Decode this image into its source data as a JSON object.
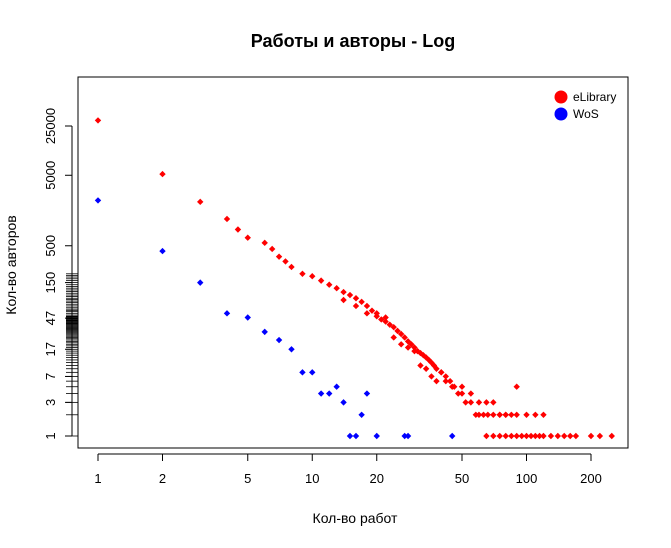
{
  "chart_data": {
    "type": "scatter",
    "title": "Работы и авторы - Log",
    "xlabel": "Кол-во работ",
    "ylabel": "Кол-во авторов",
    "x_scale": "log",
    "y_scale": "log",
    "xlim": [
      0.8,
      300
    ],
    "ylim": [
      0.7,
      110000
    ],
    "x_ticks": [
      1,
      2,
      5,
      10,
      20,
      50,
      100,
      200
    ],
    "x_tick_labels": [
      "1",
      "2",
      "5",
      "10",
      "20",
      "50",
      "100",
      "200"
    ],
    "y_ticks": [
      1,
      3,
      7,
      17,
      47,
      150,
      500,
      5000,
      25000
    ],
    "y_tick_labels": [
      "1",
      "3",
      "7",
      "17",
      "47",
      "150",
      "500",
      "5000",
      "25000"
    ],
    "y_rug_ticks": [
      1,
      2,
      3,
      4,
      5,
      6,
      7,
      8,
      9,
      10,
      11,
      12,
      13,
      14,
      15,
      16,
      17,
      18,
      19,
      20,
      21,
      22,
      23,
      24,
      25,
      26,
      27,
      28,
      29,
      30,
      31,
      32,
      33,
      34,
      35,
      36,
      37,
      38,
      39,
      40,
      41,
      42,
      43,
      44,
      45,
      46,
      47,
      48,
      49,
      50,
      52,
      55,
      58,
      60,
      63,
      66,
      70,
      74,
      78,
      82,
      86,
      90,
      95,
      100,
      106,
      112,
      118,
      125,
      132,
      140,
      150,
      160,
      170,
      180,
      190,
      200
    ],
    "grid": false,
    "legend_position": "top-right",
    "series": [
      {
        "name": "eLibrary",
        "color": "#ff0000",
        "points": [
          [
            1,
            30000
          ],
          [
            2,
            5200
          ],
          [
            3,
            2100
          ],
          [
            4,
            1200
          ],
          [
            4.5,
            850
          ],
          [
            5,
            650
          ],
          [
            6,
            550
          ],
          [
            6.5,
            450
          ],
          [
            7,
            350
          ],
          [
            7.5,
            300
          ],
          [
            8,
            250
          ],
          [
            9,
            200
          ],
          [
            10,
            185
          ],
          [
            11,
            160
          ],
          [
            12,
            140
          ],
          [
            13,
            125
          ],
          [
            14,
            110
          ],
          [
            15,
            100
          ],
          [
            16,
            90
          ],
          [
            17,
            80
          ],
          [
            18,
            70
          ],
          [
            19,
            60
          ],
          [
            20,
            50
          ],
          [
            21,
            45
          ],
          [
            22,
            42
          ],
          [
            23,
            38
          ],
          [
            24,
            35
          ],
          [
            25,
            31
          ],
          [
            26,
            28
          ],
          [
            27,
            25
          ],
          [
            28,
            22
          ],
          [
            29,
            20
          ],
          [
            30,
            18
          ],
          [
            31,
            16
          ],
          [
            32,
            15
          ],
          [
            33,
            14
          ],
          [
            34,
            13
          ],
          [
            35,
            12
          ],
          [
            36,
            11
          ],
          [
            37,
            10
          ],
          [
            38,
            9
          ],
          [
            40,
            8
          ],
          [
            42,
            7
          ],
          [
            44,
            6
          ],
          [
            46,
            5
          ],
          [
            48,
            4
          ],
          [
            50,
            4
          ],
          [
            52,
            3
          ],
          [
            55,
            3
          ],
          [
            58,
            2
          ],
          [
            60,
            2
          ],
          [
            63,
            2
          ],
          [
            66,
            2
          ],
          [
            70,
            2
          ],
          [
            75,
            2
          ],
          [
            80,
            2
          ],
          [
            85,
            2
          ],
          [
            90,
            2
          ],
          [
            100,
            2
          ],
          [
            110,
            2
          ],
          [
            120,
            2
          ],
          [
            65,
            1
          ],
          [
            70,
            1
          ],
          [
            75,
            1
          ],
          [
            80,
            1
          ],
          [
            85,
            1
          ],
          [
            90,
            1
          ],
          [
            95,
            1
          ],
          [
            100,
            1
          ],
          [
            105,
            1
          ],
          [
            110,
            1
          ],
          [
            115,
            1
          ],
          [
            120,
            1
          ],
          [
            130,
            1
          ],
          [
            140,
            1
          ],
          [
            150,
            1
          ],
          [
            160,
            1
          ],
          [
            170,
            1
          ],
          [
            200,
            1
          ],
          [
            220,
            1
          ],
          [
            250,
            1
          ],
          [
            90,
            5
          ],
          [
            40,
            8
          ],
          [
            42,
            6
          ],
          [
            45,
            5
          ],
          [
            50,
            5
          ],
          [
            55,
            4
          ],
          [
            60,
            3
          ],
          [
            65,
            3
          ],
          [
            70,
            3
          ],
          [
            75,
            2
          ],
          [
            80,
            2
          ],
          [
            32,
            10
          ],
          [
            34,
            9
          ],
          [
            36,
            7
          ],
          [
            38,
            6
          ],
          [
            24,
            25
          ],
          [
            26,
            20
          ],
          [
            28,
            18
          ],
          [
            30,
            16
          ],
          [
            18,
            55
          ],
          [
            22,
            48
          ],
          [
            20,
            55
          ],
          [
            16,
            70
          ],
          [
            14,
            85
          ]
        ]
      },
      {
        "name": "WoS",
        "color": "#0000ff",
        "points": [
          [
            1,
            2200
          ],
          [
            2,
            420
          ],
          [
            3,
            150
          ],
          [
            4,
            55
          ],
          [
            5,
            48
          ],
          [
            6,
            30
          ],
          [
            7,
            23
          ],
          [
            8,
            17
          ],
          [
            9,
            8
          ],
          [
            10,
            8
          ],
          [
            11,
            4
          ],
          [
            12,
            4
          ],
          [
            13,
            5
          ],
          [
            14,
            3
          ],
          [
            15,
            1
          ],
          [
            16,
            1
          ],
          [
            17,
            2
          ],
          [
            18,
            4
          ],
          [
            20,
            1
          ],
          [
            27,
            1
          ],
          [
            28,
            1
          ],
          [
            45,
            1
          ]
        ]
      }
    ]
  }
}
